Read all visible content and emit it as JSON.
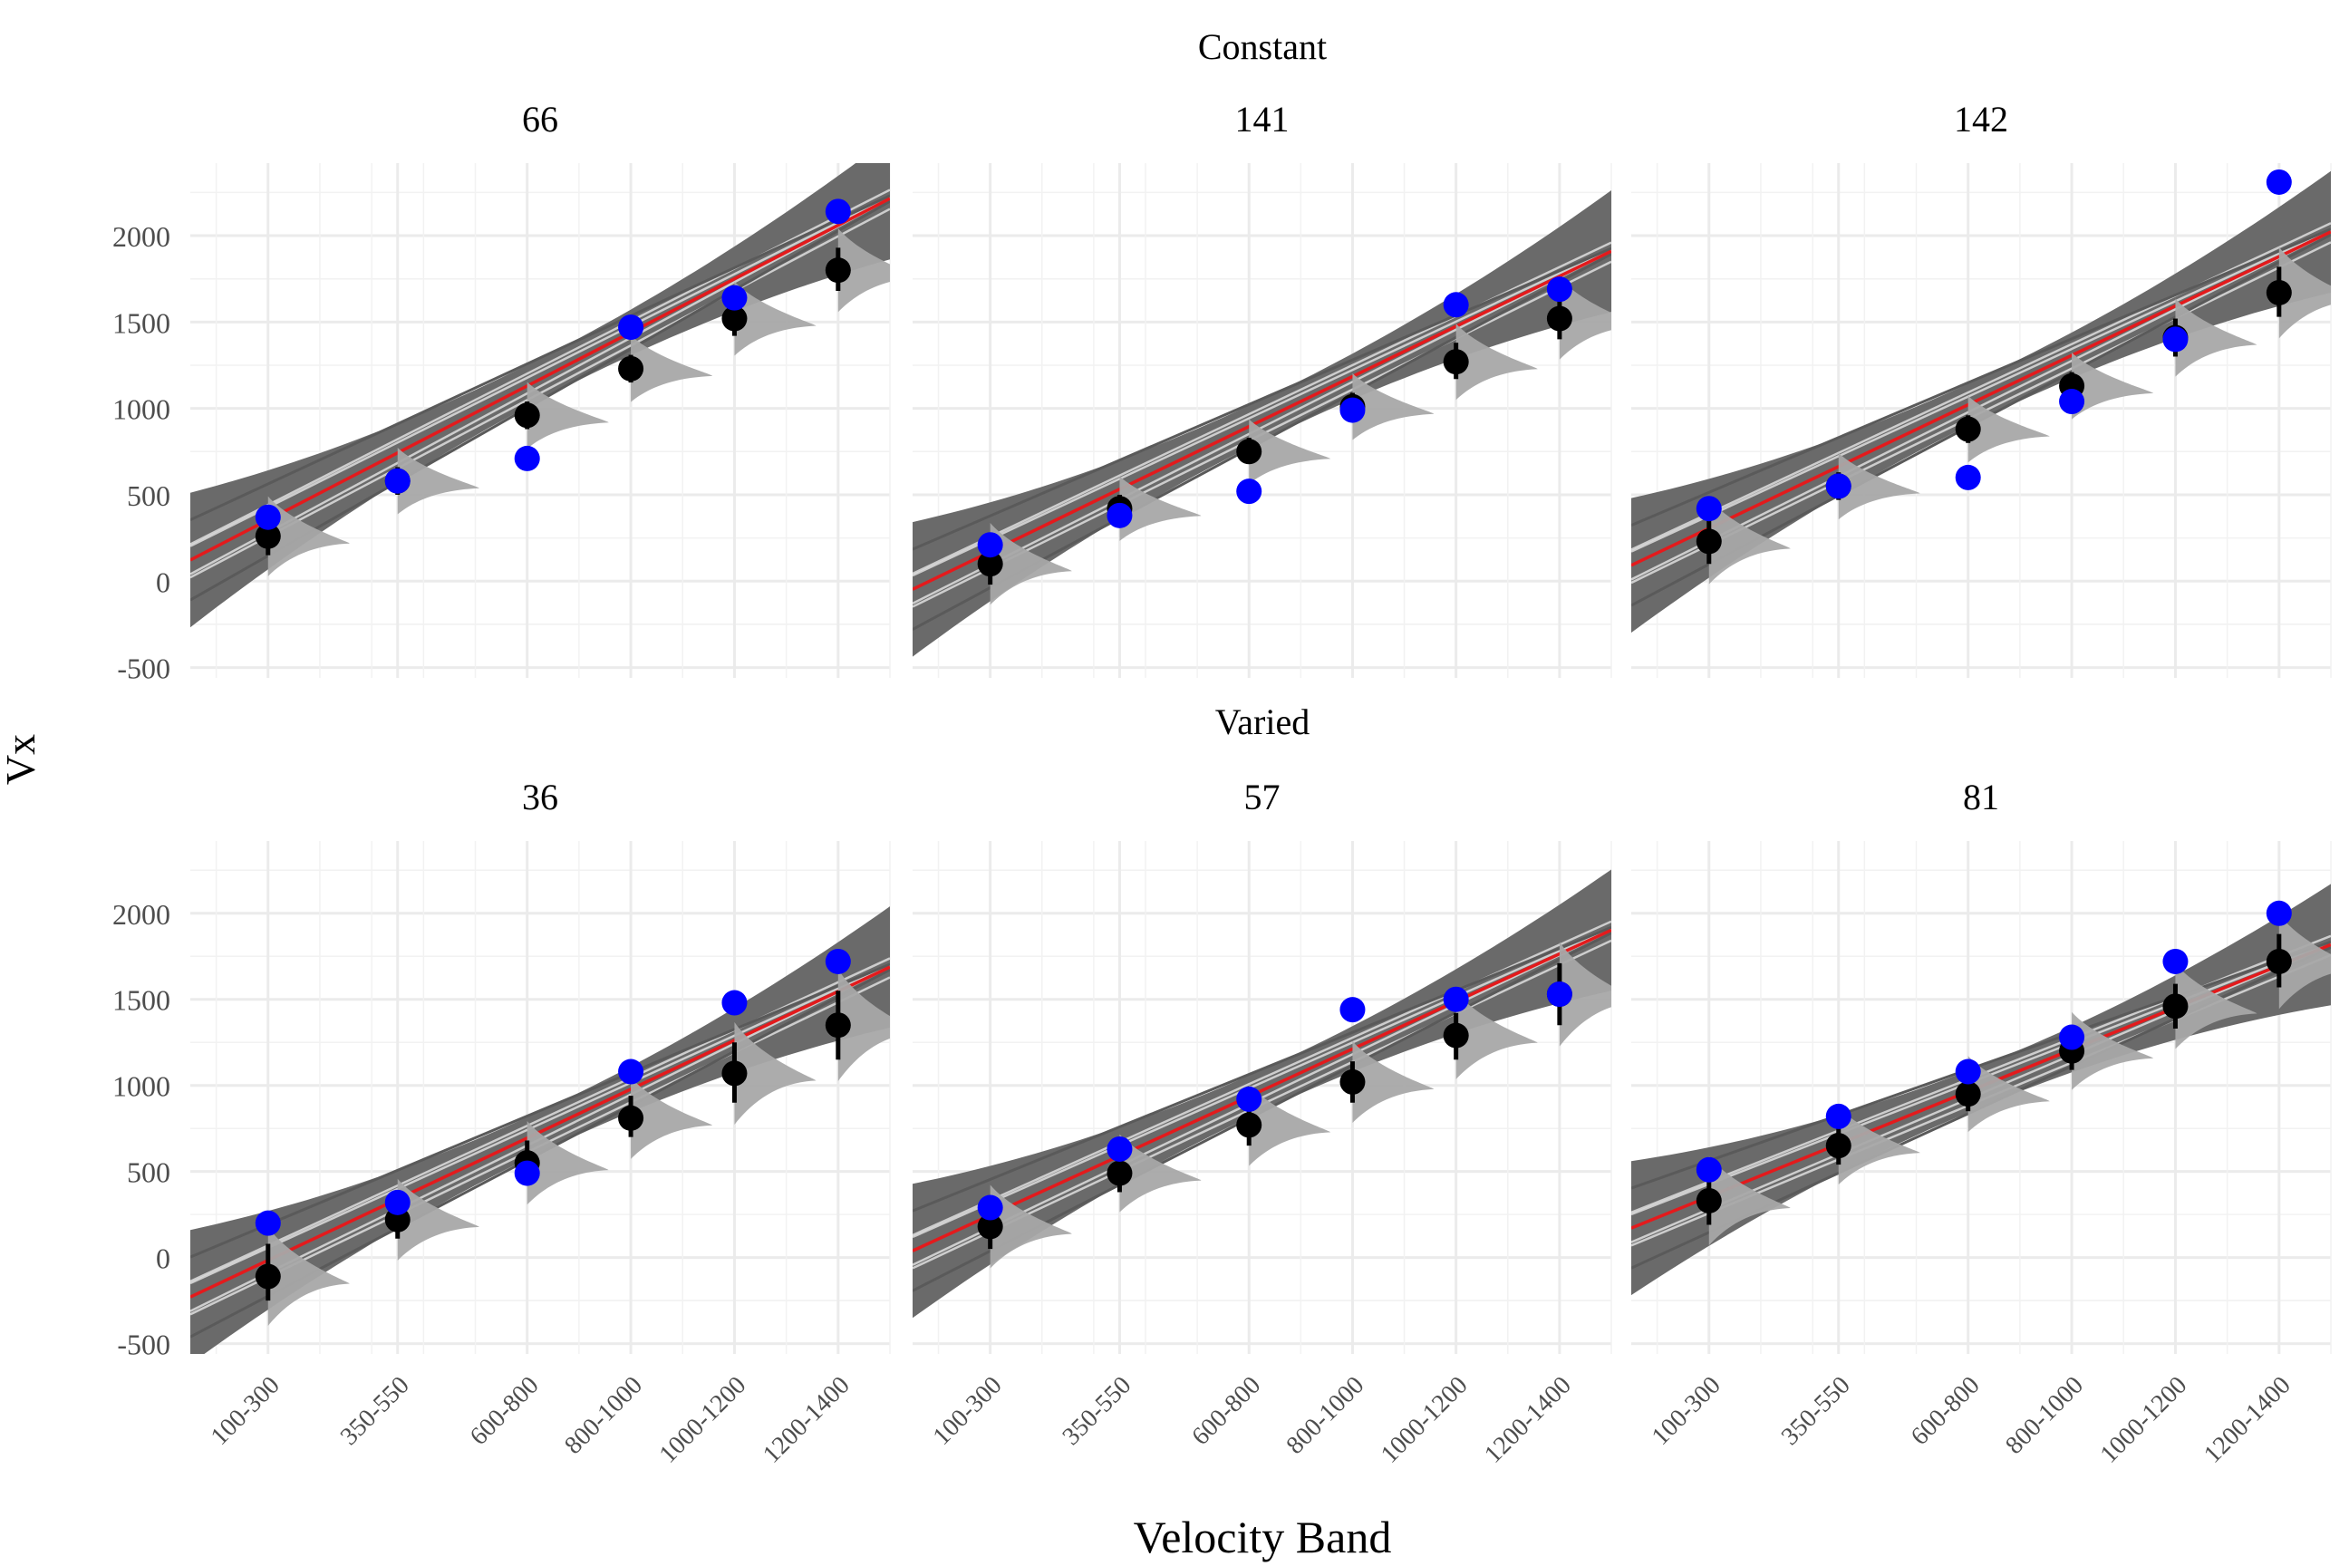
{
  "chart_data": {
    "type": "scatter",
    "xlabel": "Velocity Band",
    "ylabel": "Vx",
    "categories": [
      "100-300",
      "350-550",
      "600-800",
      "800-1000",
      "1000-1200",
      "1200-1400"
    ],
    "category_midpoints": [
      200,
      450,
      700,
      900,
      1100,
      1300
    ],
    "xlim": [
      50,
      1400
    ],
    "ylim": [
      -560,
      2420
    ],
    "yticks": [
      -500,
      0,
      500,
      1000,
      1500,
      2000
    ],
    "grid": true,
    "colors": {
      "observed": "#0000ff",
      "model": "#000000",
      "fit_line": "#e41a1c",
      "band": "#6a6a6a",
      "ribbon_edge": "#5a5a5a",
      "density": "#a8a8a8"
    },
    "groups": [
      {
        "label": "Constant",
        "panels": [
          {
            "title": "66",
            "line": {
              "intercept": 45,
              "slope": 1.55
            },
            "observed": [
              370,
              580,
              710,
              1470,
              1640,
              2140
            ],
            "model": [
              {
                "y": 260,
                "lo": 150,
                "hi": 380
              },
              {
                "y": 580,
                "lo": 500,
                "hi": 660
              },
              {
                "y": 960,
                "lo": 880,
                "hi": 1040
              },
              {
                "y": 1230,
                "lo": 1150,
                "hi": 1310
              },
              {
                "y": 1520,
                "lo": 1420,
                "hi": 1620
              },
              {
                "y": 1800,
                "lo": 1680,
                "hi": 1930
              }
            ]
          },
          {
            "title": "141",
            "line": {
              "intercept": -120,
              "slope": 1.45
            },
            "observed": [
              210,
              380,
              520,
              990,
              1600,
              1690
            ],
            "model": [
              {
                "y": 100,
                "lo": -20,
                "hi": 220
              },
              {
                "y": 420,
                "lo": 350,
                "hi": 500
              },
              {
                "y": 750,
                "lo": 680,
                "hi": 830
              },
              {
                "y": 1010,
                "lo": 930,
                "hi": 1090
              },
              {
                "y": 1270,
                "lo": 1170,
                "hi": 1380
              },
              {
                "y": 1520,
                "lo": 1400,
                "hi": 1640
              }
            ]
          },
          {
            "title": "142",
            "line": {
              "intercept": 20,
              "slope": 1.43
            },
            "observed": [
              420,
              550,
              600,
              1040,
              1400,
              2310
            ],
            "model": [
              {
                "y": 230,
                "lo": 100,
                "hi": 360
              },
              {
                "y": 550,
                "lo": 470,
                "hi": 630
              },
              {
                "y": 880,
                "lo": 800,
                "hi": 960
              },
              {
                "y": 1130,
                "lo": 1050,
                "hi": 1210
              },
              {
                "y": 1410,
                "lo": 1300,
                "hi": 1520
              },
              {
                "y": 1670,
                "lo": 1530,
                "hi": 1820
              }
            ]
          }
        ]
      },
      {
        "label": "Varied",
        "panels": [
          {
            "title": "36",
            "line": {
              "intercept": -300,
              "slope": 1.42
            },
            "observed": [
              200,
              320,
              490,
              1080,
              1480,
              1720
            ],
            "model": [
              {
                "y": -110,
                "lo": -250,
                "hi": 80
              },
              {
                "y": 220,
                "lo": 110,
                "hi": 350
              },
              {
                "y": 550,
                "lo": 430,
                "hi": 680
              },
              {
                "y": 810,
                "lo": 700,
                "hi": 940
              },
              {
                "y": 1070,
                "lo": 900,
                "hi": 1250
              },
              {
                "y": 1350,
                "lo": 1150,
                "hi": 1550
              }
            ]
          },
          {
            "title": "57",
            "line": {
              "intercept": -30,
              "slope": 1.38
            },
            "observed": [
              290,
              630,
              920,
              1440,
              1500,
              1530
            ],
            "model": [
              {
                "y": 180,
                "lo": 50,
                "hi": 300
              },
              {
                "y": 490,
                "lo": 380,
                "hi": 600
              },
              {
                "y": 770,
                "lo": 650,
                "hi": 890
              },
              {
                "y": 1020,
                "lo": 900,
                "hi": 1140
              },
              {
                "y": 1290,
                "lo": 1150,
                "hi": 1420
              },
              {
                "y": 1530,
                "lo": 1350,
                "hi": 1710
              }
            ]
          },
          {
            "title": "81",
            "line": {
              "intercept": 110,
              "slope": 1.22
            },
            "observed": [
              510,
              820,
              1080,
              1280,
              1720,
              2000
            ],
            "model": [
              {
                "y": 330,
                "lo": 190,
                "hi": 470
              },
              {
                "y": 650,
                "lo": 540,
                "hi": 760
              },
              {
                "y": 950,
                "lo": 850,
                "hi": 1060
              },
              {
                "y": 1200,
                "lo": 1090,
                "hi": 1310
              },
              {
                "y": 1460,
                "lo": 1330,
                "hi": 1590
              },
              {
                "y": 1720,
                "lo": 1570,
                "hi": 1880
              }
            ]
          }
        ]
      }
    ]
  }
}
